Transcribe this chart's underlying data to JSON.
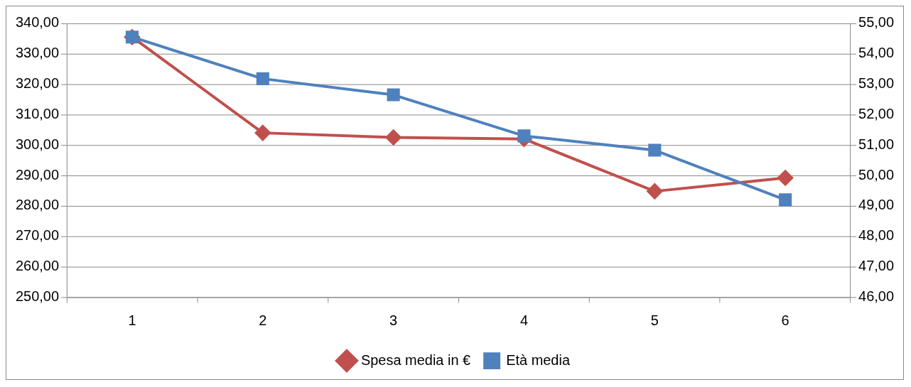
{
  "chart_data": {
    "type": "line",
    "categories": [
      "1",
      "2",
      "3",
      "4",
      "5",
      "6"
    ],
    "series": [
      {
        "name": "Spesa media in €",
        "color": "#c0504d",
        "marker": "diamond",
        "values": [
          335.5,
          304,
          302.5,
          302,
          284.8,
          289.2
        ]
      },
      {
        "name": "Età media",
        "color": "#4f81bd",
        "marker": "square",
        "axis": "y2",
        "values": [
          54.55,
          53.18,
          52.65,
          51.3,
          50.83,
          49.2
        ]
      }
    ],
    "ylim": [
      250,
      340
    ],
    "yticks": [
      {
        "value": 250,
        "label": "250,00"
      },
      {
        "value": 260,
        "label": "260,00"
      },
      {
        "value": 270,
        "label": "270,00"
      },
      {
        "value": 280,
        "label": "280,00"
      },
      {
        "value": 290,
        "label": "290,00"
      },
      {
        "value": 300,
        "label": "300,00"
      },
      {
        "value": 310,
        "label": "310,00"
      },
      {
        "value": 320,
        "label": "320,00"
      },
      {
        "value": 330,
        "label": "330,00"
      },
      {
        "value": 340,
        "label": "340,00"
      }
    ],
    "y2lim": [
      46,
      55
    ],
    "y2ticks": [
      {
        "value": 46,
        "label": "46,00"
      },
      {
        "value": 47,
        "label": "47,00"
      },
      {
        "value": 48,
        "label": "48,00"
      },
      {
        "value": 49,
        "label": "49,00"
      },
      {
        "value": 50,
        "label": "50,00"
      },
      {
        "value": 51,
        "label": "51,00"
      },
      {
        "value": 52,
        "label": "52,00"
      },
      {
        "value": 53,
        "label": "53,00"
      },
      {
        "value": 54,
        "label": "54,00"
      },
      {
        "value": 55,
        "label": "55,00"
      }
    ],
    "grid": "y",
    "legend": "bottom",
    "line_style": "solid"
  }
}
